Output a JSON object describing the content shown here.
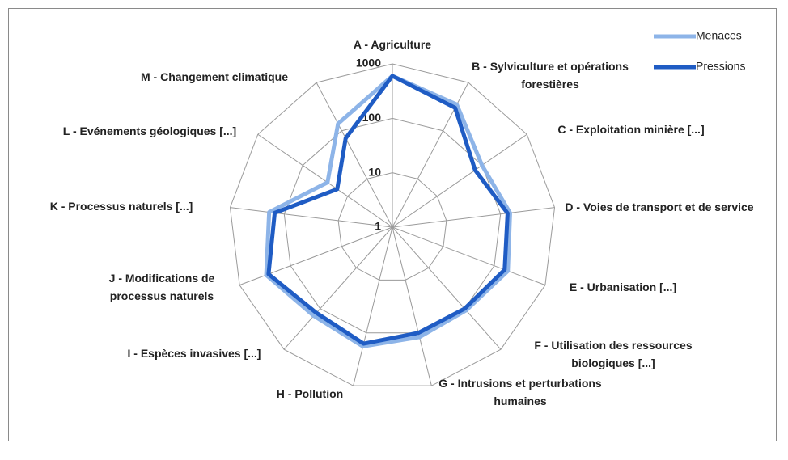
{
  "chart_data": {
    "type": "radar",
    "categories": [
      "A - Agriculture",
      "B - Sylviculture et opérations forestières",
      "C - Exploitation minière [...]",
      "D - Voies de transport et de service",
      "E - Urbanisation [...]",
      "F - Utilisation des ressources biologiques [...]",
      "G - Intrusions et perturbations humaines",
      "H - Pollution",
      "I - Espèces invasives [...]",
      "J - Modifications de processus naturels",
      "K - Processus naturels  [...]",
      "L - Evénements géologiques [...]",
      "M - Changement climatique"
    ],
    "series": [
      {
        "name": "Menaces",
        "color": "#8db4e8",
        "values": [
          600,
          350,
          100,
          150,
          185,
          110,
          120,
          180,
          150,
          300,
          190,
          28,
          140
        ]
      },
      {
        "name": "Pressions",
        "color": "#1f5cc4",
        "values": [
          600,
          300,
          70,
          135,
          160,
          100,
          100,
          160,
          127,
          270,
          150,
          17,
          70
        ]
      }
    ],
    "ylim": [
      1,
      1000
    ],
    "yticks": [
      1,
      10,
      100,
      1000
    ],
    "log_scale": true,
    "grid": true,
    "legend": "top-right"
  }
}
